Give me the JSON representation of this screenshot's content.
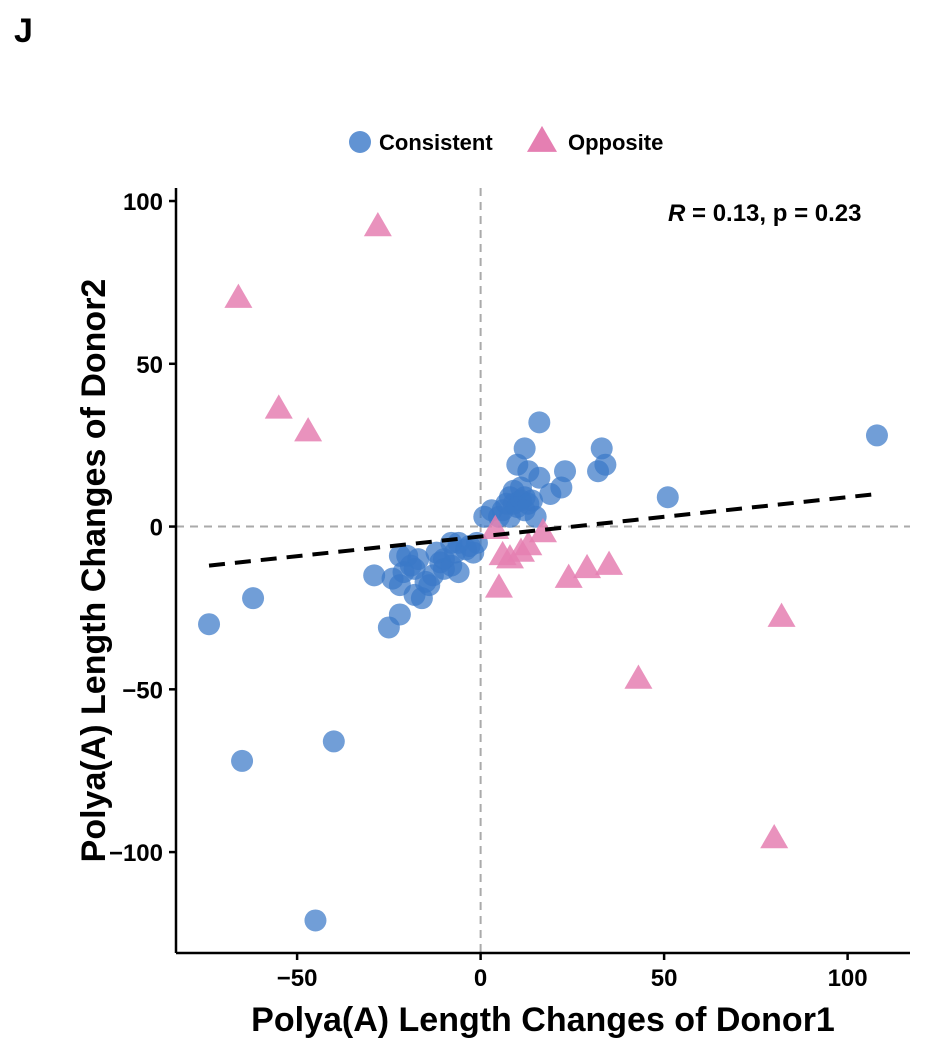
{
  "panel_label": "J",
  "chart_data": {
    "type": "scatter",
    "title": "",
    "xlabel": "Polya(A) Length Changes of Donor1",
    "ylabel": "Polya(A) Length Changes of Donor2",
    "xlim": [
      -83,
      117
    ],
    "ylim": [
      -131,
      104
    ],
    "x_ticks": [
      -50,
      0,
      50,
      100
    ],
    "x_tick_labels": [
      "−50",
      "0",
      "50",
      "100"
    ],
    "y_ticks": [
      -100,
      -50,
      0,
      50,
      100
    ],
    "y_tick_labels": [
      "−100",
      "−50",
      "0",
      "50",
      "100"
    ],
    "grid": false,
    "reference_lines": {
      "x": 0,
      "y": 0,
      "style": "dashed",
      "color": "#aaaaaa"
    },
    "annotation": {
      "r_symbol": "R",
      "text": " = 0.13, p = 0.23"
    },
    "legend": {
      "position": "top",
      "entries": [
        {
          "label": "Consistent",
          "marker": "circle",
          "color": "#3a78c8"
        },
        {
          "label": "Opposite",
          "marker": "triangle",
          "color": "#e57fb2"
        }
      ]
    },
    "trend_line": {
      "style": "dashed",
      "color": "#000000",
      "points": [
        [
          -74,
          -12
        ],
        [
          108,
          10
        ]
      ]
    },
    "series": [
      {
        "name": "Consistent",
        "marker": "circle",
        "color": "#3a78c8",
        "points": [
          [
            108,
            28
          ],
          [
            51,
            9
          ],
          [
            33,
            24
          ],
          [
            34,
            19
          ],
          [
            32,
            17
          ],
          [
            23,
            17
          ],
          [
            22,
            12
          ],
          [
            19,
            10
          ],
          [
            16,
            32
          ],
          [
            16,
            15
          ],
          [
            12,
            24
          ],
          [
            13,
            17
          ],
          [
            10,
            19
          ],
          [
            11,
            12
          ],
          [
            9,
            11
          ],
          [
            8,
            9
          ],
          [
            7,
            7
          ],
          [
            9,
            7
          ],
          [
            11,
            8
          ],
          [
            12,
            9
          ],
          [
            14,
            8
          ],
          [
            6,
            5
          ],
          [
            5,
            3
          ],
          [
            3,
            5
          ],
          [
            1,
            3
          ],
          [
            8,
            3
          ],
          [
            15,
            3
          ],
          [
            12,
            5
          ],
          [
            10,
            6
          ],
          [
            13,
            7
          ],
          [
            -1,
            -5
          ],
          [
            -2,
            -8
          ],
          [
            -3,
            -6
          ],
          [
            -4,
            -7
          ],
          [
            -6,
            -5
          ],
          [
            -7,
            -8
          ],
          [
            -8,
            -5
          ],
          [
            -6,
            -14
          ],
          [
            -8,
            -12
          ],
          [
            -10,
            -10
          ],
          [
            -10,
            -13
          ],
          [
            -11,
            -11
          ],
          [
            -12,
            -8
          ],
          [
            -13,
            -15
          ],
          [
            -14,
            -18
          ],
          [
            -15,
            -17
          ],
          [
            -16,
            -22
          ],
          [
            -18,
            -21
          ],
          [
            -18,
            -13
          ],
          [
            -17,
            -10
          ],
          [
            -19,
            -12
          ],
          [
            -20,
            -9
          ],
          [
            -22,
            -9
          ],
          [
            -21,
            -14
          ],
          [
            -22,
            -18
          ],
          [
            -24,
            -16
          ],
          [
            -22,
            -27
          ],
          [
            -25,
            -31
          ],
          [
            -29,
            -15
          ],
          [
            -62,
            -22
          ],
          [
            -74,
            -30
          ],
          [
            -65,
            -72
          ],
          [
            -40,
            -66
          ],
          [
            -45,
            -121
          ]
        ]
      },
      {
        "name": "Opposite",
        "marker": "triangle",
        "color": "#e57fb2",
        "points": [
          [
            -28,
            92
          ],
          [
            -66,
            70
          ],
          [
            -55,
            36
          ],
          [
            -47,
            29
          ],
          [
            4,
            -1
          ],
          [
            5,
            -19
          ],
          [
            6,
            -9
          ],
          [
            8,
            -10
          ],
          [
            11,
            -8
          ],
          [
            13,
            -6
          ],
          [
            17,
            -2
          ],
          [
            24,
            -16
          ],
          [
            29,
            -13
          ],
          [
            35,
            -12
          ],
          [
            43,
            -47
          ],
          [
            82,
            -28
          ],
          [
            80,
            -96
          ]
        ]
      }
    ]
  }
}
